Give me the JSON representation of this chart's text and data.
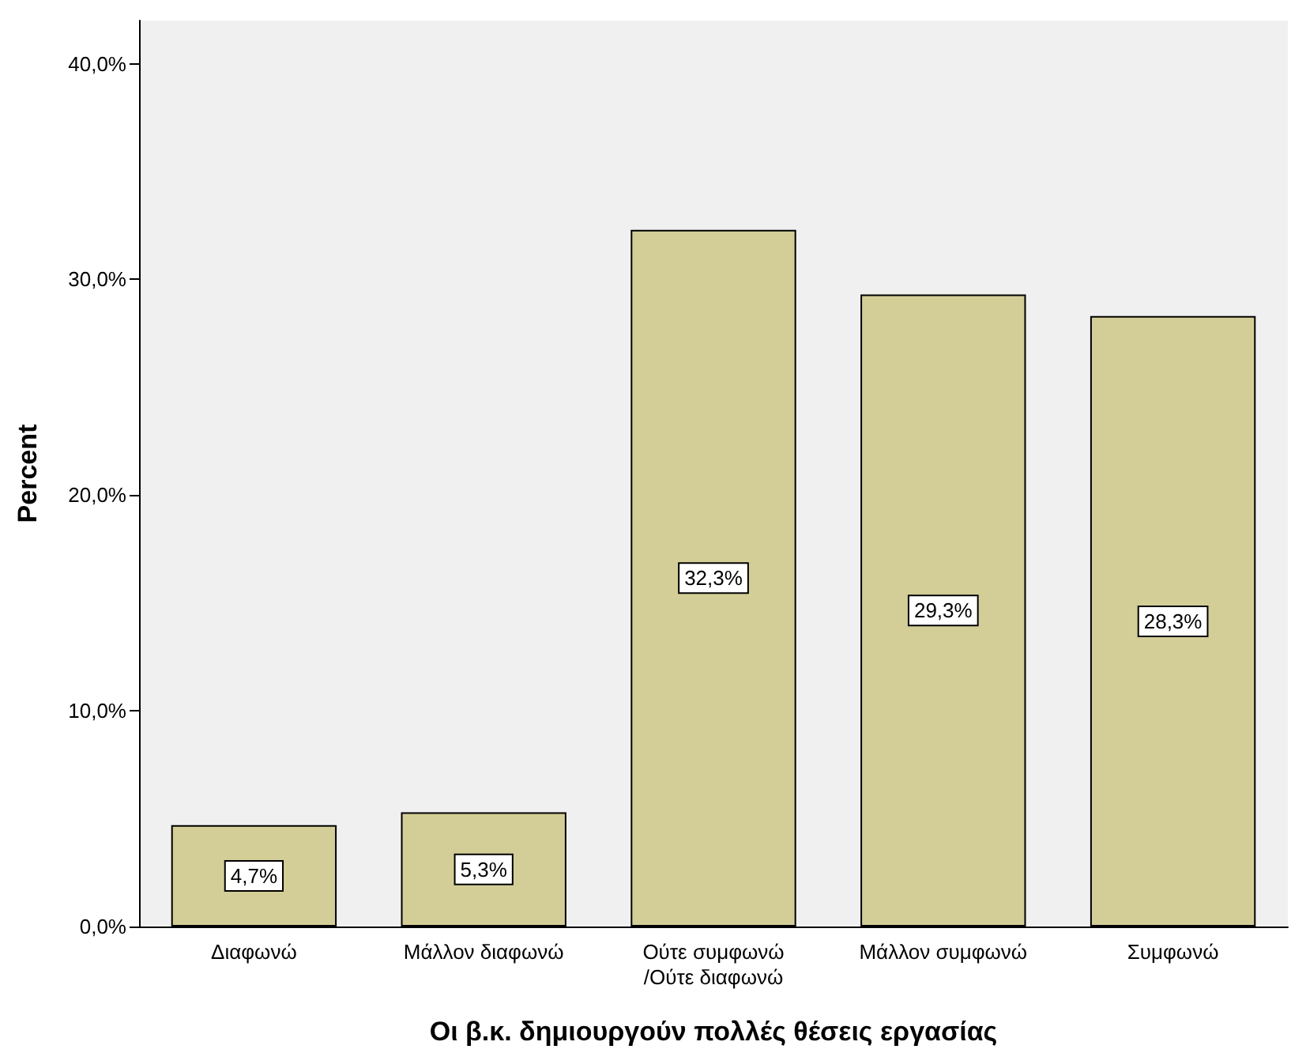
{
  "chart_data": {
    "type": "bar",
    "xlabel": "Οι β.κ. δημιουργούν πολλές θέσεις εργασίας",
    "ylabel": "Percent",
    "categories": [
      "Διαφωνώ",
      "Μάλλον διαφωνώ",
      "Ούτε συμφωνώ\n/Ούτε διαφωνώ",
      "Μάλλον συμφωνώ",
      "Συμφωνώ"
    ],
    "values": [
      4.7,
      5.3,
      32.3,
      29.3,
      28.3
    ],
    "value_labels": [
      "4,7%",
      "5,3%",
      "32,3%",
      "29,3%",
      "28,3%"
    ],
    "color": "#d3ce97",
    "ylim": [
      0,
      42
    ],
    "yticks": [
      {
        "value": 0,
        "label": "0,0%"
      },
      {
        "value": 10,
        "label": "10,0%"
      },
      {
        "value": 20,
        "label": "20,0%"
      },
      {
        "value": 30,
        "label": "30,0%"
      },
      {
        "value": 40,
        "label": "40,0%"
      }
    ],
    "grid": false
  }
}
